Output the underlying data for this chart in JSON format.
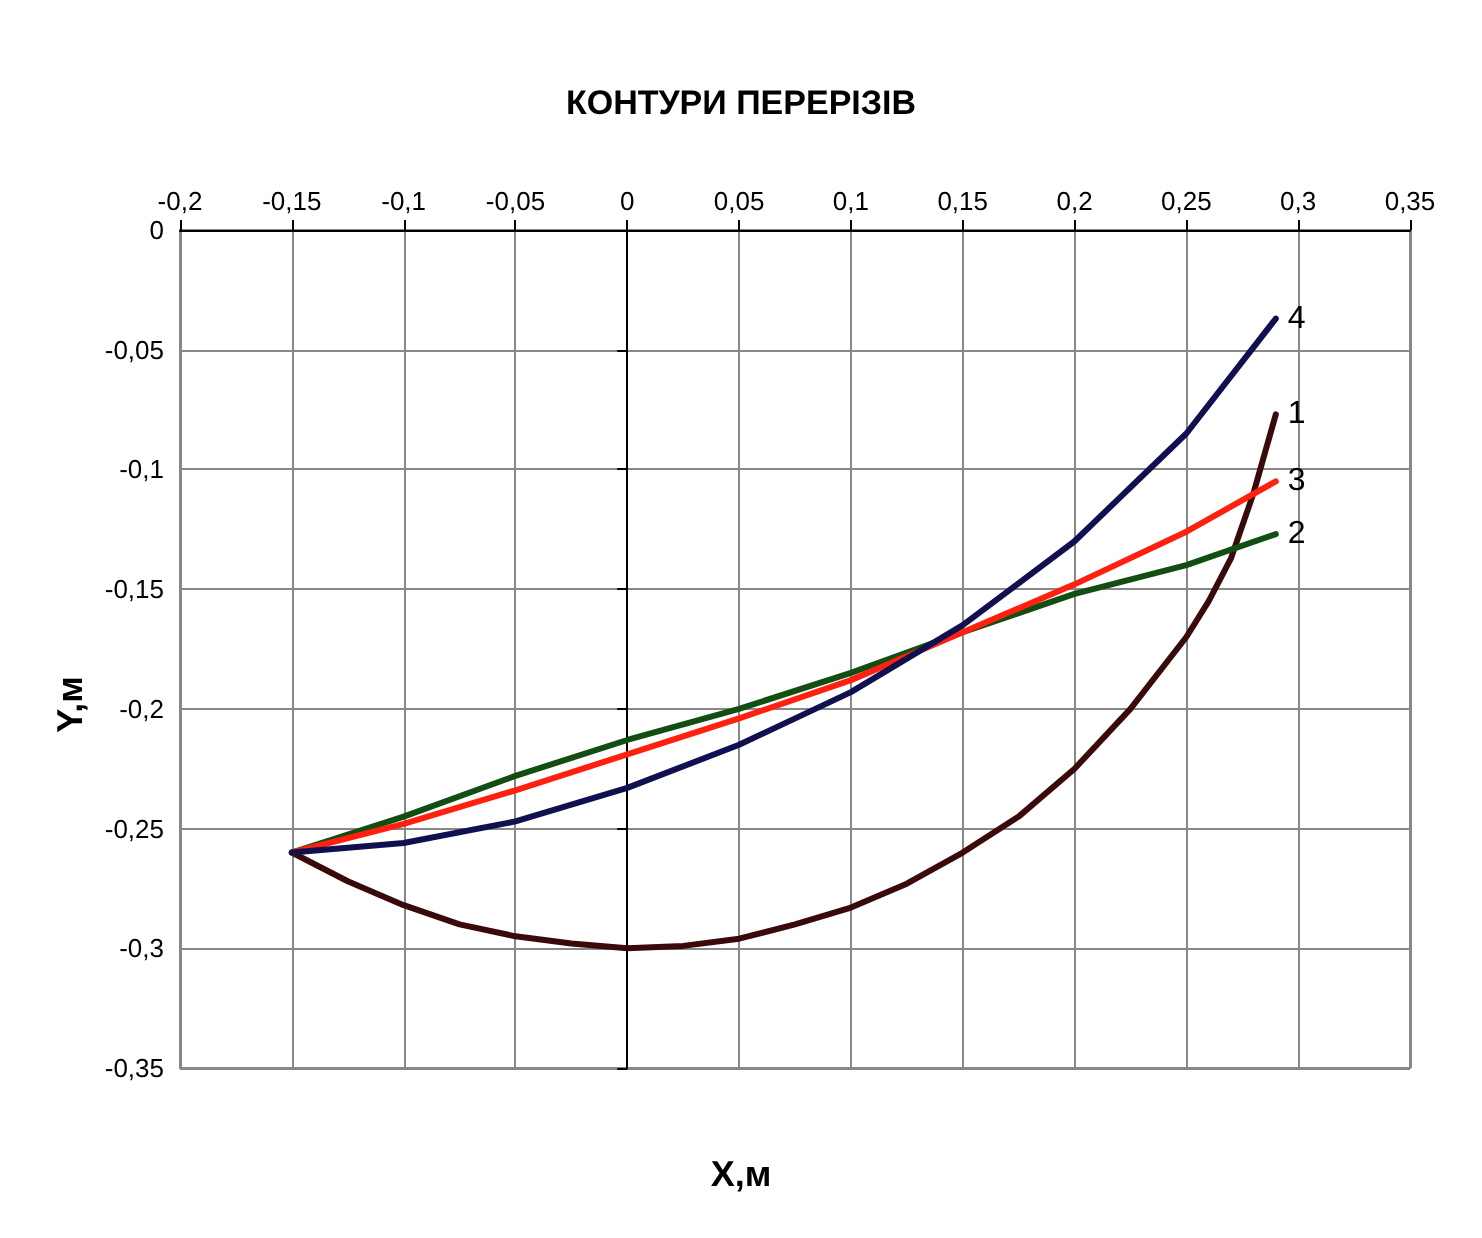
{
  "chart_data": {
    "type": "line",
    "title": "КОНТУРИ ПЕРЕРІЗІВ",
    "xlabel": "X,м",
    "ylabel": "Y,м",
    "xlim": [
      -0.2,
      0.35
    ],
    "ylim": [
      -0.35,
      0
    ],
    "xticks": [
      {
        "value": -0.2,
        "label": "-0,2"
      },
      {
        "value": -0.15,
        "label": "-0,15"
      },
      {
        "value": -0.1,
        "label": "-0,1"
      },
      {
        "value": -0.05,
        "label": "-0,05"
      },
      0,
      {
        "value": 0.05,
        "label": "0,05"
      },
      {
        "value": 0.1,
        "label": "0,1"
      },
      {
        "value": 0.15,
        "label": "0,15"
      },
      {
        "value": 0.2,
        "label": "0,2"
      },
      {
        "value": 0.25,
        "label": "0,25"
      },
      {
        "value": 0.3,
        "label": "0,3"
      },
      {
        "value": 0.35,
        "label": "0,35"
      }
    ],
    "yticks": [
      {
        "value": -0.35,
        "label": "-0,35"
      },
      {
        "value": -0.3,
        "label": "-0,3"
      },
      {
        "value": -0.25,
        "label": "-0,25"
      },
      {
        "value": -0.2,
        "label": "-0,2"
      },
      {
        "value": -0.15,
        "label": "-0,15"
      },
      {
        "value": -0.1,
        "label": "-0,1"
      },
      {
        "value": -0.05,
        "label": "-0,05"
      },
      0
    ],
    "grid": true,
    "legend": false,
    "marker": "none",
    "line_style": "solid",
    "series": [
      {
        "name": "1",
        "color": "#3a0a0a",
        "x": [
          -0.15,
          -0.125,
          -0.1,
          -0.075,
          -0.05,
          -0.025,
          0,
          0.025,
          0.05,
          0.075,
          0.1,
          0.125,
          0.15,
          0.175,
          0.2,
          0.225,
          0.25,
          0.26,
          0.27,
          0.28,
          0.29
        ],
        "values": [
          -0.26,
          -0.272,
          -0.282,
          -0.29,
          -0.295,
          -0.298,
          -0.3,
          -0.299,
          -0.296,
          -0.29,
          -0.283,
          -0.273,
          -0.26,
          -0.245,
          -0.225,
          -0.2,
          -0.17,
          -0.155,
          -0.137,
          -0.11,
          -0.077
        ]
      },
      {
        "name": "2",
        "color": "#124d12",
        "x": [
          -0.15,
          -0.1,
          -0.05,
          0,
          0.05,
          0.1,
          0.15,
          0.2,
          0.25,
          0.29
        ],
        "values": [
          -0.26,
          -0.245,
          -0.228,
          -0.213,
          -0.2,
          -0.185,
          -0.168,
          -0.152,
          -0.14,
          -0.127
        ]
      },
      {
        "name": "3",
        "color": "#ff2010",
        "x": [
          -0.15,
          -0.1,
          -0.05,
          0,
          0.05,
          0.1,
          0.15,
          0.2,
          0.25,
          0.29
        ],
        "values": [
          -0.26,
          -0.248,
          -0.234,
          -0.219,
          -0.204,
          -0.188,
          -0.168,
          -0.148,
          -0.126,
          -0.105
        ]
      },
      {
        "name": "4",
        "color": "#101050",
        "x": [
          -0.15,
          -0.1,
          -0.05,
          0,
          0.05,
          0.1,
          0.15,
          0.2,
          0.25,
          0.29
        ],
        "values": [
          -0.26,
          -0.256,
          -0.247,
          -0.233,
          -0.215,
          -0.193,
          -0.165,
          -0.13,
          -0.085,
          -0.037
        ]
      }
    ]
  }
}
